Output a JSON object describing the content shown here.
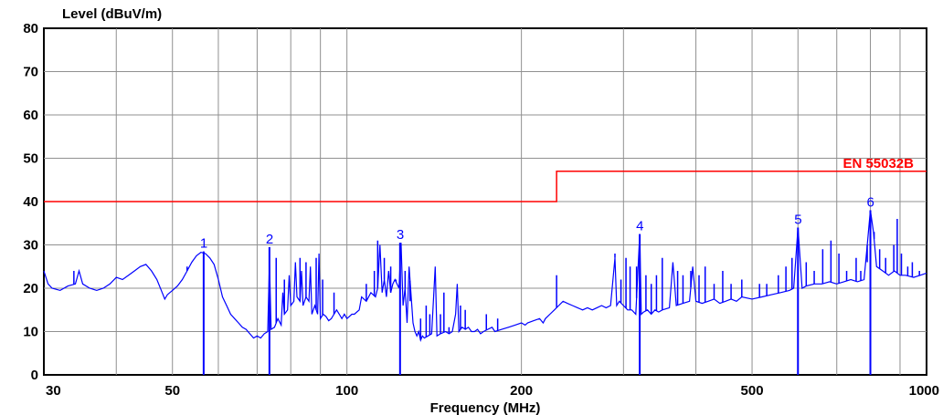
{
  "chart_data": {
    "type": "line",
    "ylabel": "Level (dBuV/m)",
    "xlabel": "Frequency (MHz)",
    "xscale": "log",
    "xlim": [
      30,
      1000
    ],
    "ylim": [
      0,
      80
    ],
    "yticks": [
      0,
      10,
      20,
      30,
      40,
      50,
      60,
      70,
      80
    ],
    "xticks": [
      30,
      50,
      100,
      200,
      500,
      1000
    ],
    "grid": true,
    "colors": {
      "trace": "#0000ff",
      "limit": "#ff0000",
      "grid": "#909090",
      "markers": "#0000ff"
    },
    "limit_line": {
      "name": "EN 55032B",
      "segments": [
        {
          "x0": 30,
          "x1": 230,
          "y": 40
        },
        {
          "x0": 230,
          "x1": 1000,
          "y": 47
        }
      ]
    },
    "markers": [
      {
        "label": "1",
        "x": 56.6,
        "y": 28.5
      },
      {
        "label": "2",
        "x": 73.5,
        "y": 29.5
      },
      {
        "label": "3",
        "x": 123.5,
        "y": 30.5
      },
      {
        "label": "4",
        "x": 320,
        "y": 32.5
      },
      {
        "label": "5",
        "x": 600,
        "y": 34
      },
      {
        "label": "6",
        "x": 800,
        "y": 38
      }
    ],
    "series": [
      {
        "values_xy": [
          [
            30,
            24
          ],
          [
            30.5,
            21
          ],
          [
            31,
            20
          ],
          [
            32,
            19.5
          ],
          [
            33,
            20.5
          ],
          [
            34,
            21
          ],
          [
            34.5,
            24
          ],
          [
            35,
            21
          ],
          [
            36,
            20
          ],
          [
            37,
            19.5
          ],
          [
            38,
            20
          ],
          [
            39,
            21
          ],
          [
            40,
            22.5
          ],
          [
            41,
            22
          ],
          [
            42,
            23
          ],
          [
            43,
            24
          ],
          [
            44,
            25
          ],
          [
            45,
            25.5
          ],
          [
            46,
            24
          ],
          [
            47,
            22
          ],
          [
            48,
            19
          ],
          [
            48.5,
            17.5
          ],
          [
            49,
            18.5
          ],
          [
            50,
            19.5
          ],
          [
            51,
            20.5
          ],
          [
            52,
            22
          ],
          [
            53,
            24
          ],
          [
            54,
            26
          ],
          [
            55,
            27.5
          ],
          [
            56,
            28.3
          ],
          [
            57,
            28
          ],
          [
            58,
            27
          ],
          [
            59,
            25.5
          ],
          [
            60,
            22
          ],
          [
            61,
            18
          ],
          [
            62,
            16
          ],
          [
            63,
            14
          ],
          [
            64,
            13
          ],
          [
            65,
            12
          ],
          [
            66,
            11
          ],
          [
            67,
            10.5
          ],
          [
            68,
            9.5
          ],
          [
            69,
            8.5
          ],
          [
            70,
            9
          ],
          [
            71,
            8.5
          ],
          [
            72,
            9.5
          ],
          [
            73,
            10
          ],
          [
            73.5,
            26
          ],
          [
            74,
            10.5
          ],
          [
            75,
            11
          ],
          [
            76,
            13
          ],
          [
            77,
            11.5
          ],
          [
            77.5,
            19
          ],
          [
            78,
            14
          ],
          [
            79,
            15
          ],
          [
            79.5,
            23
          ],
          [
            80,
            16
          ],
          [
            81,
            17
          ],
          [
            81.5,
            26
          ],
          [
            82,
            18
          ],
          [
            83,
            17
          ],
          [
            83.5,
            24
          ],
          [
            84,
            16
          ],
          [
            85,
            18
          ],
          [
            86,
            17
          ],
          [
            86.5,
            25
          ],
          [
            87,
            14
          ],
          [
            88,
            16
          ],
          [
            89,
            14
          ],
          [
            89.5,
            28
          ],
          [
            90,
            13
          ],
          [
            91,
            14
          ],
          [
            92,
            13.5
          ],
          [
            93,
            12.5
          ],
          [
            94,
            13
          ],
          [
            95,
            14
          ],
          [
            96,
            15
          ],
          [
            97,
            14
          ],
          [
            98,
            13
          ],
          [
            99,
            14
          ],
          [
            100,
            13
          ],
          [
            101,
            13.5
          ],
          [
            102,
            14
          ],
          [
            103,
            14
          ],
          [
            105,
            15
          ],
          [
            106,
            18
          ],
          [
            108,
            17
          ],
          [
            110,
            19
          ],
          [
            112,
            18
          ],
          [
            113,
            20
          ],
          [
            114,
            30
          ],
          [
            115,
            19
          ],
          [
            116,
            22
          ],
          [
            117,
            18
          ],
          [
            118,
            24
          ],
          [
            119,
            19
          ],
          [
            120,
            21
          ],
          [
            121,
            22
          ],
          [
            123,
            20
          ],
          [
            124,
            30.5
          ],
          [
            125,
            16
          ],
          [
            126,
            20
          ],
          [
            127,
            12
          ],
          [
            128,
            25
          ],
          [
            130,
            12
          ],
          [
            131,
            10
          ],
          [
            132,
            9
          ],
          [
            133,
            10
          ],
          [
            134,
            8
          ],
          [
            135,
            9
          ],
          [
            136,
            8.5
          ],
          [
            138,
            9
          ],
          [
            140,
            9.5
          ],
          [
            142,
            25
          ],
          [
            143,
            9
          ],
          [
            145,
            9.5
          ],
          [
            148,
            10
          ],
          [
            150,
            9.5
          ],
          [
            152,
            10
          ],
          [
            154,
            14
          ],
          [
            155,
            21
          ],
          [
            156,
            10
          ],
          [
            158,
            11
          ],
          [
            160,
            10.5
          ],
          [
            162,
            11
          ],
          [
            164,
            10
          ],
          [
            166,
            10
          ],
          [
            168,
            10.5
          ],
          [
            170,
            9.5
          ],
          [
            172,
            10
          ],
          [
            175,
            10.5
          ],
          [
            178,
            11
          ],
          [
            180,
            10
          ],
          [
            185,
            10.5
          ],
          [
            190,
            11
          ],
          [
            195,
            11.5
          ],
          [
            200,
            12
          ],
          [
            203,
            11.5
          ],
          [
            205,
            12
          ],
          [
            210,
            12.5
          ],
          [
            215,
            13
          ],
          [
            218,
            12
          ],
          [
            220,
            13
          ],
          [
            224,
            14
          ],
          [
            228,
            15
          ],
          [
            232,
            16
          ],
          [
            236,
            17
          ],
          [
            240,
            16.5
          ],
          [
            245,
            16
          ],
          [
            250,
            15.5
          ],
          [
            255,
            15
          ],
          [
            260,
            15.5
          ],
          [
            265,
            15
          ],
          [
            270,
            15.5
          ],
          [
            275,
            16
          ],
          [
            280,
            15.5
          ],
          [
            285,
            16
          ],
          [
            290,
            27
          ],
          [
            292,
            16
          ],
          [
            295,
            17
          ],
          [
            300,
            16
          ],
          [
            305,
            15
          ],
          [
            310,
            15
          ],
          [
            315,
            14
          ],
          [
            320,
            32.5
          ],
          [
            322,
            14
          ],
          [
            325,
            14.5
          ],
          [
            330,
            15
          ],
          [
            335,
            14
          ],
          [
            340,
            15
          ],
          [
            345,
            14.5
          ],
          [
            350,
            15
          ],
          [
            360,
            15.5
          ],
          [
            365,
            26
          ],
          [
            370,
            16
          ],
          [
            380,
            16.5
          ],
          [
            390,
            17
          ],
          [
            395,
            25
          ],
          [
            400,
            17
          ],
          [
            410,
            16.5
          ],
          [
            420,
            17
          ],
          [
            430,
            17.5
          ],
          [
            440,
            16.5
          ],
          [
            450,
            17
          ],
          [
            460,
            17.5
          ],
          [
            470,
            17
          ],
          [
            480,
            18
          ],
          [
            500,
            17.5
          ],
          [
            520,
            18
          ],
          [
            540,
            18.5
          ],
          [
            560,
            19
          ],
          [
            580,
            19.5
          ],
          [
            590,
            20
          ],
          [
            600,
            34
          ],
          [
            610,
            20
          ],
          [
            620,
            20.5
          ],
          [
            640,
            21
          ],
          [
            660,
            21
          ],
          [
            680,
            21.5
          ],
          [
            700,
            21
          ],
          [
            720,
            21.5
          ],
          [
            740,
            22
          ],
          [
            760,
            21.5
          ],
          [
            780,
            22
          ],
          [
            790,
            30
          ],
          [
            800,
            38
          ],
          [
            810,
            33
          ],
          [
            820,
            25
          ],
          [
            840,
            24
          ],
          [
            860,
            23
          ],
          [
            880,
            24
          ],
          [
            900,
            23
          ],
          [
            920,
            23
          ],
          [
            950,
            22.5
          ],
          [
            975,
            23
          ],
          [
            1000,
            23.5
          ]
        ]
      }
    ],
    "spikes": [
      [
        33.8,
        24
      ],
      [
        53,
        25
      ],
      [
        75.5,
        27
      ],
      [
        78,
        22
      ],
      [
        83,
        27
      ],
      [
        85,
        26
      ],
      [
        88.5,
        27
      ],
      [
        90.8,
        22
      ],
      [
        95,
        19
      ],
      [
        108,
        21
      ],
      [
        111.5,
        24
      ],
      [
        113,
        31
      ],
      [
        116,
        27
      ],
      [
        119,
        25
      ],
      [
        121.5,
        22
      ],
      [
        126,
        24
      ],
      [
        128.5,
        17
      ],
      [
        134,
        13
      ],
      [
        137,
        16
      ],
      [
        139,
        14
      ],
      [
        145,
        14
      ],
      [
        147,
        19
      ],
      [
        150,
        11
      ],
      [
        157,
        16
      ],
      [
        160,
        15
      ],
      [
        174,
        14
      ],
      [
        182,
        13
      ],
      [
        230,
        23
      ],
      [
        290,
        28
      ],
      [
        297,
        22
      ],
      [
        303,
        27
      ],
      [
        308,
        25
      ],
      [
        316,
        25
      ],
      [
        328,
        23
      ],
      [
        335,
        21
      ],
      [
        342,
        23
      ],
      [
        350,
        27
      ],
      [
        372,
        24
      ],
      [
        380,
        23
      ],
      [
        392,
        24
      ],
      [
        405,
        23
      ],
      [
        415,
        25
      ],
      [
        430,
        21
      ],
      [
        445,
        24
      ],
      [
        460,
        21
      ],
      [
        480,
        22
      ],
      [
        515,
        21
      ],
      [
        530,
        21
      ],
      [
        555,
        23
      ],
      [
        572,
        25
      ],
      [
        586,
        27
      ],
      [
        620,
        26
      ],
      [
        640,
        24
      ],
      [
        662,
        29
      ],
      [
        684,
        31
      ],
      [
        706,
        28
      ],
      [
        728,
        24
      ],
      [
        756,
        27
      ],
      [
        770,
        24
      ],
      [
        790,
        26
      ],
      [
        812,
        33
      ],
      [
        830,
        29
      ],
      [
        850,
        27
      ],
      [
        878,
        30
      ],
      [
        890,
        36
      ],
      [
        905,
        28
      ],
      [
        928,
        25
      ],
      [
        945,
        26
      ],
      [
        972,
        24
      ]
    ],
    "dips": [
      [
        56.6,
        0
      ],
      [
        73.5,
        0
      ],
      [
        123.5,
        0
      ],
      [
        320,
        0
      ],
      [
        600,
        0
      ],
      [
        800,
        0
      ]
    ]
  }
}
